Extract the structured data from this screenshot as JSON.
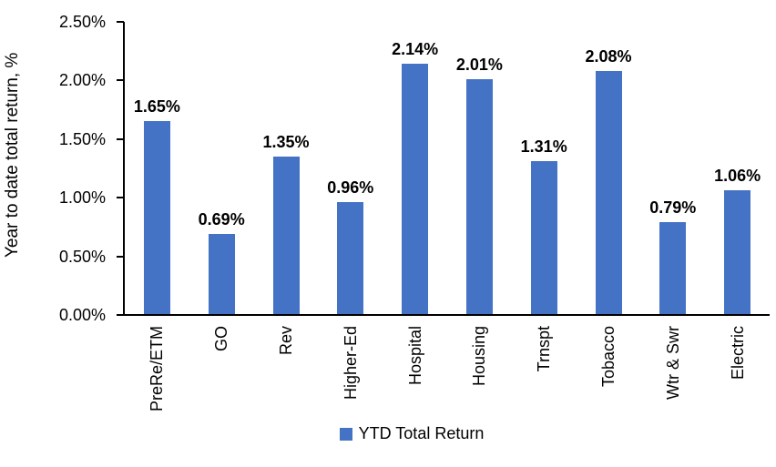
{
  "chart_data": {
    "type": "bar",
    "title": "",
    "categories": [
      "PreRe/ETM",
      "GO",
      "Rev",
      "Higher-Ed",
      "Hospital",
      "Housing",
      "Trnspt",
      "Tobacco",
      "Wtr & Swr",
      "Electric"
    ],
    "series": [
      {
        "name": "YTD Total Return",
        "values": [
          1.65,
          0.69,
          1.35,
          0.96,
          2.14,
          2.01,
          1.31,
          2.08,
          0.79,
          1.06
        ]
      }
    ],
    "data_labels": [
      "1.65%",
      "0.69%",
      "1.35%",
      "0.96%",
      "2.14%",
      "2.01%",
      "1.31%",
      "2.08%",
      "0.79%",
      "1.06%"
    ],
    "ylabel": "Year to date total return, %",
    "xlabel": "",
    "yticks": [
      "0.00%",
      "0.50%",
      "1.00%",
      "1.50%",
      "2.00%",
      "2.50%"
    ],
    "ylim": [
      0,
      2.5
    ],
    "grid": false,
    "bar_color": "#4472C4",
    "axis_color": "#000000",
    "legend": {
      "position": "bottom",
      "entries": [
        {
          "label": "YTD Total Return",
          "color": "#4472C4"
        }
      ]
    }
  }
}
